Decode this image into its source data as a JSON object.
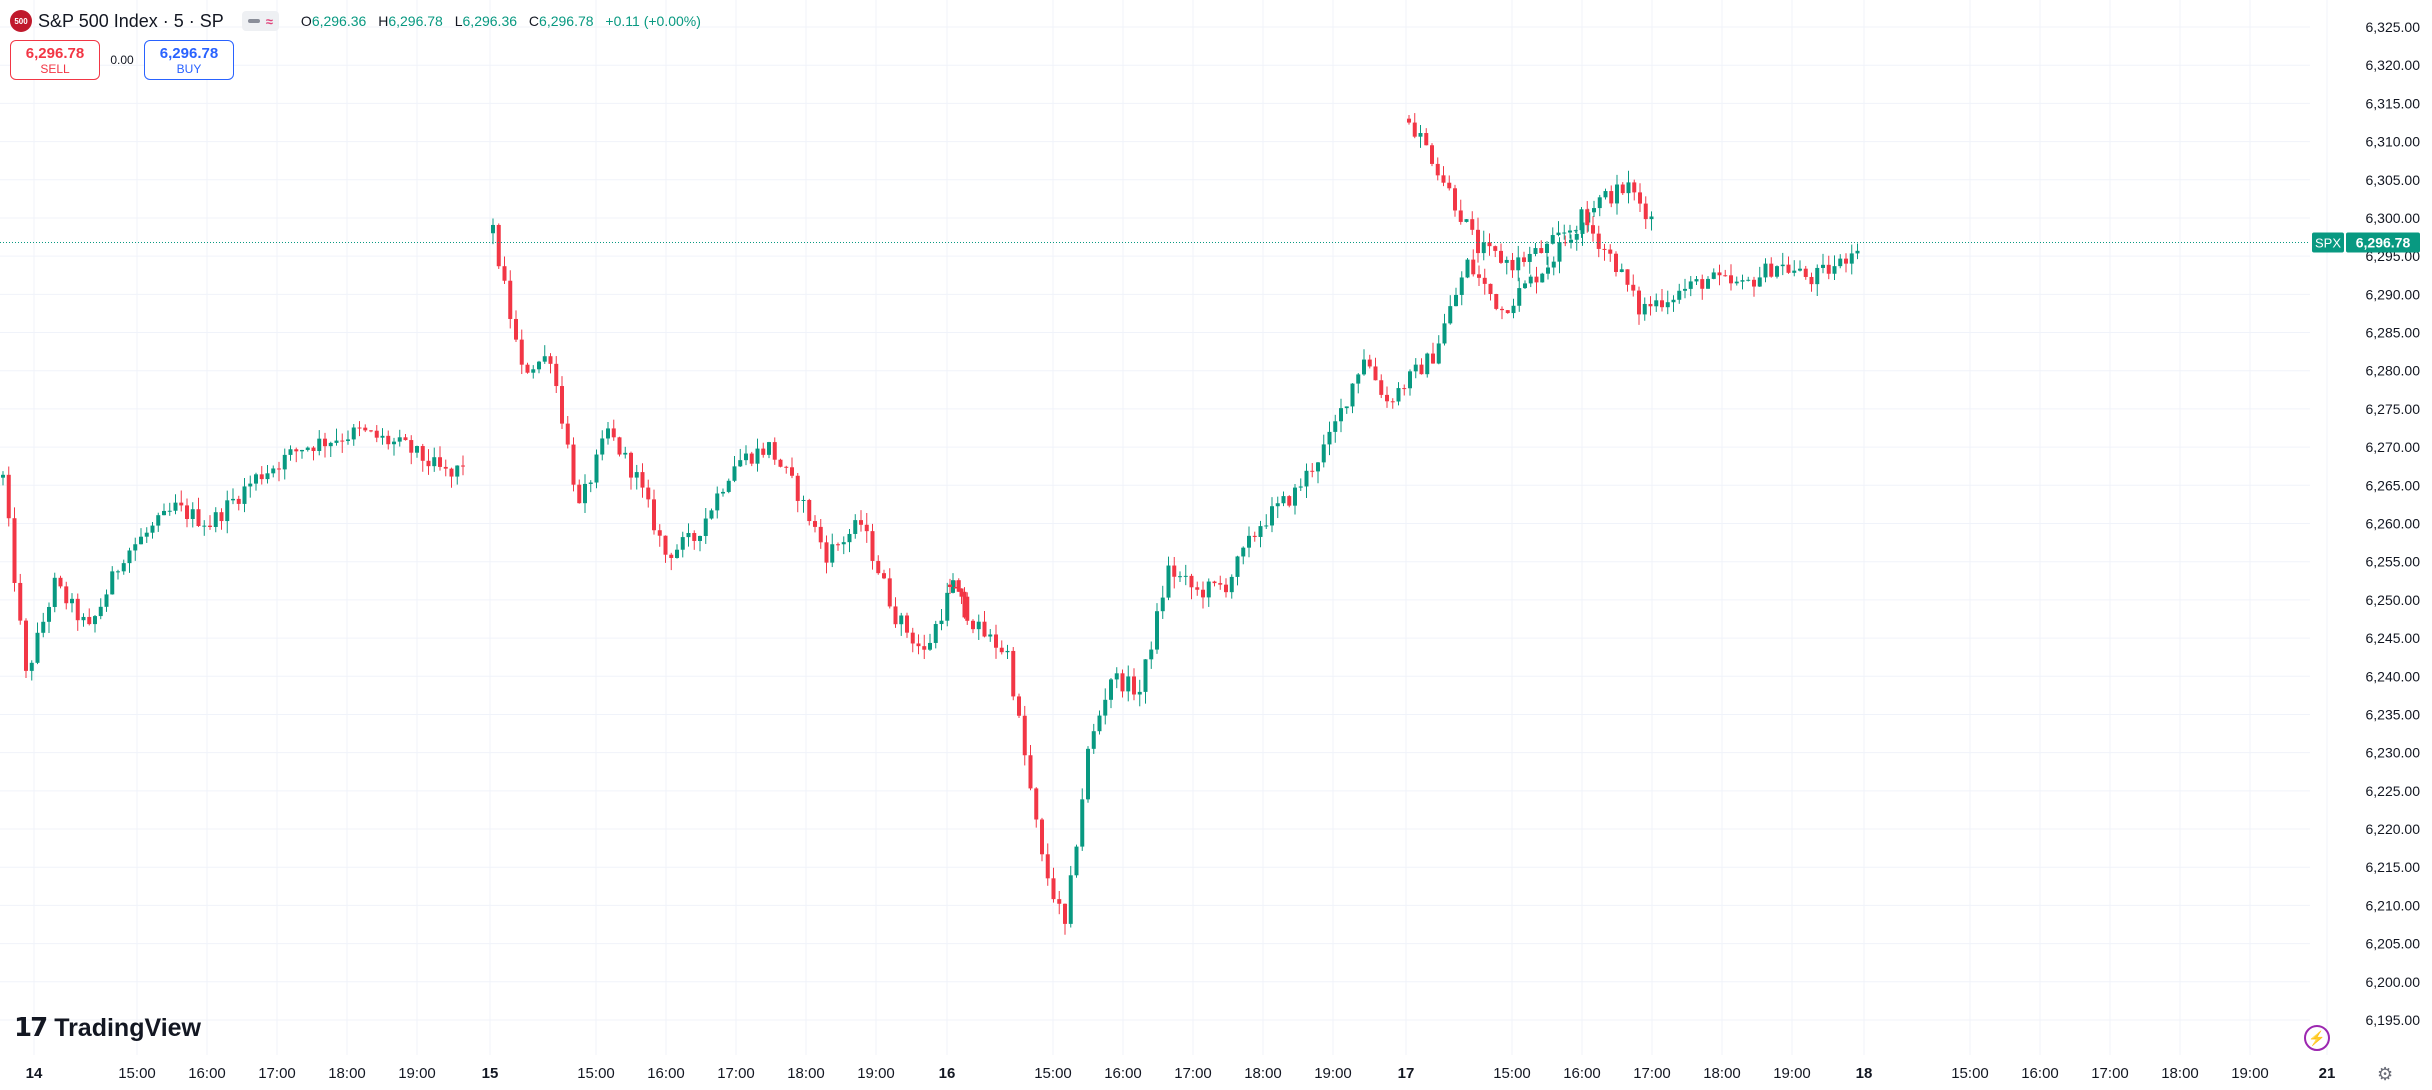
{
  "header": {
    "logo_text": "500",
    "symbol_title": "S&P 500 Index · 5 · SP",
    "ohlc": {
      "o_label": "O",
      "o": "6,296.36",
      "h_label": "H",
      "h": "6,296.78",
      "l_label": "L",
      "l": "6,296.36",
      "c_label": "C",
      "c": "6,296.78",
      "change": "+0.11 (+0.00%)"
    }
  },
  "trade": {
    "sell_price": "6,296.78",
    "sell_label": "SELL",
    "spread": "0.00",
    "buy_price": "6,296.78",
    "buy_label": "BUY"
  },
  "branding": {
    "logo_mark": "17",
    "logo_text": "TradingView"
  },
  "icons": {
    "bolt": "lightning-icon",
    "settings": "gear-icon"
  },
  "colors": {
    "up": "#089981",
    "down": "#f23645",
    "grid": "#f0f3fa",
    "price_tag": "#089981"
  },
  "chart_data": {
    "type": "candlestick",
    "symbol": "SPX",
    "last_price": 6296.78,
    "last_price_label": "6,296.78",
    "ylim": [
      6192.5,
      6327.5
    ],
    "y_ticks": [
      6325,
      6320,
      6315,
      6310,
      6305,
      6300,
      6295,
      6290,
      6285,
      6280,
      6275,
      6270,
      6265,
      6260,
      6255,
      6250,
      6245,
      6240,
      6235,
      6230,
      6225,
      6220,
      6215,
      6210,
      6205,
      6200,
      6195
    ],
    "y_tick_labels": [
      "6,325.00",
      "6,320.00",
      "6,315.00",
      "6,310.00",
      "6,305.00",
      "6,300.00",
      "6,295.00",
      "6,290.00",
      "6,285.00",
      "6,280.00",
      "6,275.00",
      "6,270.00",
      "6,265.00",
      "6,260.00",
      "6,255.00",
      "6,250.00",
      "6,245.00",
      "6,240.00",
      "6,235.00",
      "6,230.00",
      "6,225.00",
      "6,220.00",
      "6,215.00",
      "6,210.00",
      "6,205.00",
      "6,200.00",
      "6,195.00"
    ],
    "x_labels": [
      "14",
      "15:00",
      "16:00",
      "17:00",
      "18:00",
      "19:00",
      "15",
      "15:00",
      "16:00",
      "17:00",
      "18:00",
      "19:00",
      "16",
      "15:00",
      "16:00",
      "17:00",
      "18:00",
      "19:00",
      "17",
      "15:00",
      "16:00",
      "17:00",
      "18:00",
      "19:00",
      "18",
      "15:00",
      "16:00",
      "17:00",
      "18:00",
      "19:00",
      "21"
    ],
    "x_bold": [
      "14",
      "15",
      "16",
      "17",
      "18",
      "21"
    ],
    "sessions": [
      {
        "open": 6266.0,
        "path": [
          [
            0,
            6266
          ],
          [
            4,
            6240
          ],
          [
            9,
            6252
          ],
          [
            15,
            6246
          ],
          [
            21,
            6256
          ],
          [
            30,
            6262
          ],
          [
            36,
            6260
          ],
          [
            44,
            6266
          ],
          [
            52,
            6270
          ],
          [
            62,
            6272
          ],
          [
            70,
            6270
          ],
          [
            78,
            6266
          ],
          [
            80,
            6268
          ]
        ]
      },
      {
        "open": 6298.0,
        "path": [
          [
            0,
            6298
          ],
          [
            5,
            6280
          ],
          [
            10,
            6282
          ],
          [
            15,
            6262
          ],
          [
            20,
            6272
          ],
          [
            25,
            6266
          ],
          [
            30,
            6256
          ],
          [
            35,
            6258
          ],
          [
            42,
            6268
          ],
          [
            48,
            6270
          ],
          [
            53,
            6264
          ],
          [
            58,
            6256
          ],
          [
            64,
            6260
          ],
          [
            70,
            6248
          ],
          [
            75,
            6243
          ],
          [
            80,
            6252
          ],
          [
            82,
            6248
          ]
        ]
      },
      {
        "open": 6252.0,
        "path": [
          [
            0,
            6252
          ],
          [
            5,
            6246
          ],
          [
            10,
            6243
          ],
          [
            16,
            6216
          ],
          [
            20,
            6207
          ],
          [
            24,
            6230
          ],
          [
            28,
            6240
          ],
          [
            33,
            6238
          ],
          [
            38,
            6254
          ],
          [
            43,
            6251
          ],
          [
            48,
            6252
          ],
          [
            54,
            6260
          ],
          [
            60,
            6264
          ],
          [
            66,
            6271
          ],
          [
            72,
            6282
          ],
          [
            76,
            6276
          ],
          [
            80,
            6279
          ],
          [
            84,
            6282
          ],
          [
            90,
            6294
          ],
          [
            96,
            6288
          ],
          [
            104,
            6294
          ],
          [
            112,
            6302
          ],
          [
            118,
            6304
          ],
          [
            122,
            6300
          ]
        ]
      },
      {
        "open": 6313.0,
        "path": [
          [
            0,
            6313
          ],
          [
            4,
            6308
          ],
          [
            8,
            6302
          ],
          [
            12,
            6296
          ],
          [
            18,
            6294
          ],
          [
            24,
            6296
          ],
          [
            30,
            6300
          ],
          [
            36,
            6294
          ],
          [
            40,
            6288
          ],
          [
            46,
            6290
          ],
          [
            52,
            6292
          ],
          [
            58,
            6291
          ],
          [
            64,
            6294
          ],
          [
            70,
            6292
          ],
          [
            75,
            6294
          ],
          [
            78,
            6296.78
          ]
        ]
      }
    ]
  }
}
